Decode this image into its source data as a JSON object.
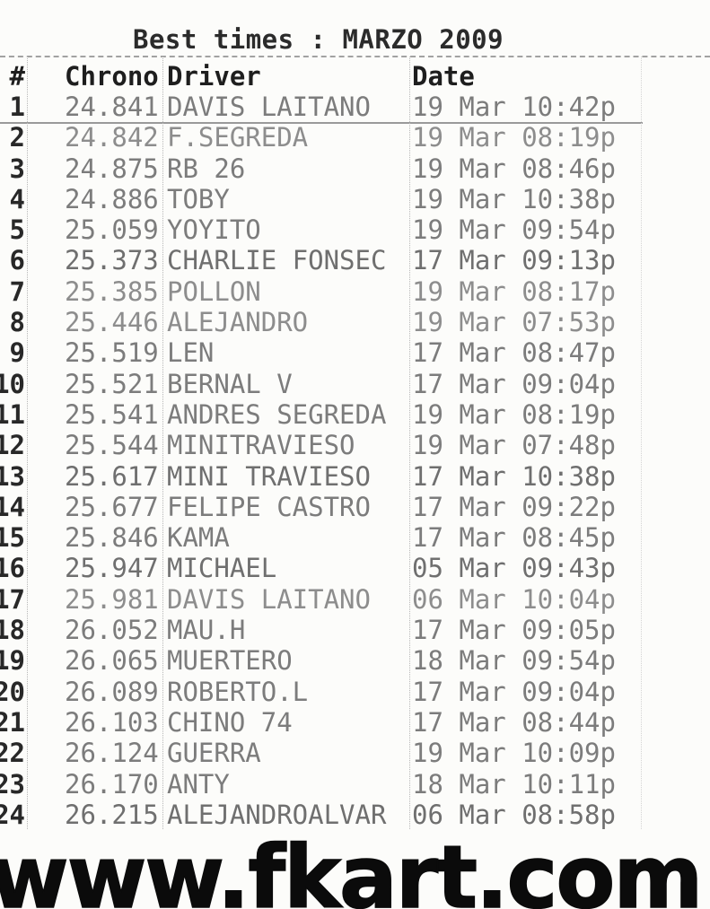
{
  "title": "Best times : MARZO 2009",
  "table": {
    "headers": {
      "rank": "#",
      "chrono": "Chrono",
      "driver": "Driver",
      "date": "Date"
    },
    "rows": [
      {
        "rank": "1",
        "chrono": "24.841",
        "driver": "DAVIS LAITANO",
        "date": "19 Mar 10:42p"
      },
      {
        "rank": "2",
        "chrono": "24.842",
        "driver": "F.SEGREDA",
        "date": "19 Mar 08:19p"
      },
      {
        "rank": "3",
        "chrono": "24.875",
        "driver": "RB 26",
        "date": "19 Mar 08:46p"
      },
      {
        "rank": "4",
        "chrono": "24.886",
        "driver": "TOBY",
        "date": "19 Mar 10:38p"
      },
      {
        "rank": "5",
        "chrono": "25.059",
        "driver": "YOYITO",
        "date": "19 Mar 09:54p"
      },
      {
        "rank": "6",
        "chrono": "25.373",
        "driver": "CHARLIE FONSEC",
        "date": "17 Mar 09:13p"
      },
      {
        "rank": "7",
        "chrono": "25.385",
        "driver": "POLLON",
        "date": "19 Mar 08:17p"
      },
      {
        "rank": "8",
        "chrono": "25.446",
        "driver": "ALEJANDRO",
        "date": "19 Mar 07:53p"
      },
      {
        "rank": "9",
        "chrono": "25.519",
        "driver": "LEN",
        "date": "17 Mar 08:47p"
      },
      {
        "rank": "10",
        "chrono": "25.521",
        "driver": "BERNAL V",
        "date": "17 Mar 09:04p"
      },
      {
        "rank": "11",
        "chrono": "25.541",
        "driver": "ANDRES SEGREDA",
        "date": "19 Mar 08:19p"
      },
      {
        "rank": "12",
        "chrono": "25.544",
        "driver": "MINITRAVIESO",
        "date": "19 Mar 07:48p"
      },
      {
        "rank": "13",
        "chrono": "25.617",
        "driver": "MINI TRAVIESO",
        "date": "17 Mar 10:38p"
      },
      {
        "rank": "14",
        "chrono": "25.677",
        "driver": "FELIPE CASTRO",
        "date": "17 Mar 09:22p"
      },
      {
        "rank": "15",
        "chrono": "25.846",
        "driver": "KAMA",
        "date": "17 Mar 08:45p"
      },
      {
        "rank": "16",
        "chrono": "25.947",
        "driver": "MICHAEL",
        "date": "05 Mar 09:43p"
      },
      {
        "rank": "17",
        "chrono": "25.981",
        "driver": "DAVIS LAITANO",
        "date": "06 Mar 10:04p"
      },
      {
        "rank": "18",
        "chrono": "26.052",
        "driver": "MAU.H",
        "date": "17 Mar 09:05p"
      },
      {
        "rank": "19",
        "chrono": "26.065",
        "driver": "MUERTERO",
        "date": "18 Mar 09:54p"
      },
      {
        "rank": "20",
        "chrono": "26.089",
        "driver": "ROBERTO.L",
        "date": "17 Mar 09:04p"
      },
      {
        "rank": "21",
        "chrono": "26.103",
        "driver": "CHINO 74",
        "date": "17 Mar 08:44p"
      },
      {
        "rank": "22",
        "chrono": "26.124",
        "driver": "GUERRA",
        "date": "19 Mar 10:09p"
      },
      {
        "rank": "23",
        "chrono": "26.170",
        "driver": "ANTY",
        "date": "18 Mar 10:11p"
      },
      {
        "rank": "24",
        "chrono": "26.215",
        "driver": "ALEJANDROALVAR",
        "date": "06 Mar 08:58p"
      }
    ]
  },
  "footer": {
    "url": "www.fkart.com"
  },
  "colors": {
    "ink": "#1e1e1e",
    "faded_ink": "#7c7c7c",
    "logo_ink": "#0b0b0b"
  }
}
